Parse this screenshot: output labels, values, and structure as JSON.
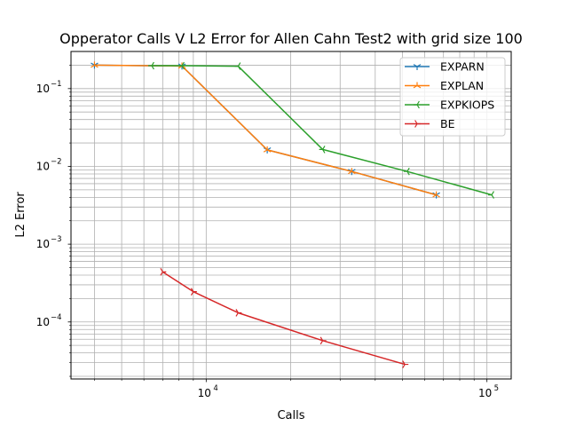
{
  "chart_data": {
    "type": "line",
    "title": "Opperator Calls V L2 Error for Allen Cahn Test2 with grid size 100",
    "xlabel": "Calls",
    "ylabel": "L2 Error",
    "xscale": "log",
    "yscale": "log",
    "xlim": [
      3300,
      122000
    ],
    "ylim": [
      1.85e-05,
      0.3
    ],
    "grid": "both (major and minor)",
    "legend_position": "top-right",
    "x_ticks": [
      {
        "value": 10000,
        "base": "10",
        "exp": "4"
      },
      {
        "value": 100000,
        "base": "10",
        "exp": "5"
      }
    ],
    "y_ticks": [
      {
        "value": 0.0001,
        "base": "10",
        "exp": "−4"
      },
      {
        "value": 0.001,
        "base": "10",
        "exp": "−3"
      },
      {
        "value": 0.01,
        "base": "10",
        "exp": "−2"
      },
      {
        "value": 0.1,
        "base": "10",
        "exp": "−1"
      }
    ],
    "series": [
      {
        "name": "EXPARN",
        "color": "#1f77b4",
        "marker": "tri_down",
        "x": [
          4000,
          8200,
          16500,
          33000,
          66000
        ],
        "y": [
          0.2,
          0.195,
          0.0163,
          0.0086,
          0.0043
        ]
      },
      {
        "name": "EXPLAN",
        "color": "#ff7f0e",
        "marker": "tri_up",
        "x": [
          4000,
          8200,
          16500,
          33000,
          66000
        ],
        "y": [
          0.2,
          0.195,
          0.0163,
          0.0086,
          0.0043
        ]
      },
      {
        "name": "EXPKIOPS",
        "color": "#2ca02c",
        "marker": "tri_left",
        "x": [
          6400,
          8200,
          13000,
          26000,
          52000,
          104000
        ],
        "y": [
          0.197,
          0.197,
          0.194,
          0.0165,
          0.0086,
          0.0043
        ]
      },
      {
        "name": "BE",
        "color": "#d62728",
        "marker": "tri_right",
        "x": [
          7000,
          9000,
          13000,
          26000,
          51000
        ],
        "y": [
          0.00044,
          0.000245,
          0.000131,
          5.75e-05,
          2.85e-05
        ]
      }
    ]
  }
}
